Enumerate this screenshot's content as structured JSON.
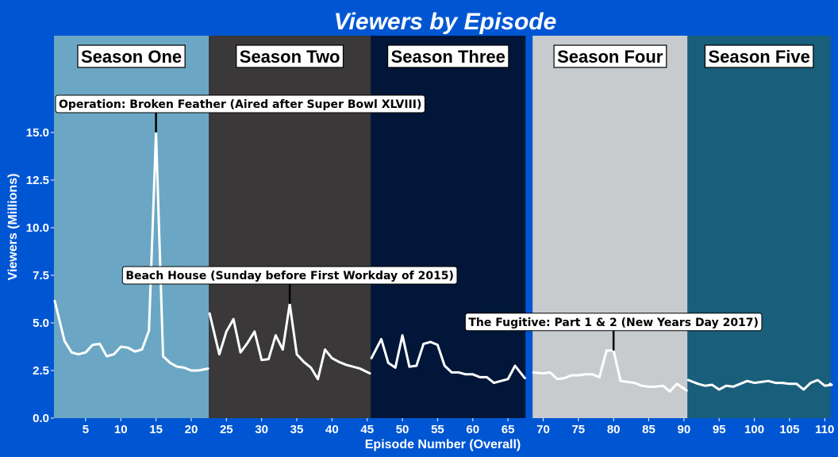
{
  "chart_data": {
    "type": "line",
    "title": "Viewers by Episode",
    "xlabel": "Episode Number (Overall)",
    "ylabel": "Viewers (Millions)",
    "xlim": [
      0.5,
      112
    ],
    "ylim": [
      0,
      18.5
    ],
    "x_ticks": [
      5,
      10,
      15,
      20,
      25,
      30,
      35,
      40,
      45,
      50,
      55,
      60,
      65,
      70,
      75,
      80,
      85,
      90,
      95,
      100,
      105,
      110
    ],
    "y_ticks": [
      "0.0",
      "2.5",
      "5.0",
      "7.5",
      "10.0",
      "12.5",
      "15.0"
    ],
    "grid": false,
    "legend": "none",
    "background_color": "#0056D2",
    "line_color": "#FFFFFF",
    "seasons": [
      {
        "name": "Season One",
        "episodes": [
          1,
          22
        ],
        "color": "#6BA7C4",
        "values": [
          6.15,
          4.05,
          3.45,
          3.35,
          3.45,
          3.85,
          3.9,
          3.25,
          3.35,
          3.75,
          3.7,
          3.5,
          3.6,
          4.6,
          15.0,
          3.25,
          2.9,
          2.7,
          2.65,
          2.5,
          2.5,
          2.6
        ]
      },
      {
        "name": "Season Two",
        "episodes": [
          23,
          45
        ],
        "color": "#3A3838",
        "values": [
          5.5,
          3.35,
          4.55,
          5.2,
          3.45,
          3.95,
          4.55,
          3.05,
          3.1,
          4.35,
          3.6,
          6.0,
          3.35,
          2.95,
          2.65,
          2.05,
          3.6,
          3.15,
          2.95,
          2.8,
          2.7,
          2.6,
          2.35
        ]
      },
      {
        "name": "Season Three",
        "episodes": [
          46,
          67
        ],
        "color": "#011638",
        "values": [
          3.15,
          4.15,
          2.9,
          2.65,
          4.35,
          2.7,
          2.75,
          3.9,
          4.0,
          3.85,
          2.75,
          2.4,
          2.4,
          2.3,
          2.3,
          2.15,
          2.15,
          1.85,
          1.95,
          2.05,
          2.75,
          2.1
        ]
      },
      {
        "name": "Season Four",
        "episodes": [
          69,
          90
        ],
        "color": "#C8CBCE",
        "values": [
          2.4,
          2.35,
          2.4,
          2.05,
          2.1,
          2.25,
          2.25,
          2.3,
          2.3,
          2.15,
          3.55,
          3.55,
          1.95,
          1.9,
          1.85,
          1.7,
          1.65,
          1.65,
          1.7,
          1.4,
          1.8,
          1.45
        ]
      },
      {
        "name": "Season Five",
        "episodes": [
          91,
          112
        ],
        "color": "#195E7A",
        "values": [
          2.0,
          1.8,
          1.7,
          1.75,
          1.5,
          1.7,
          1.65,
          1.8,
          1.95,
          1.85,
          1.9,
          1.95,
          1.85,
          1.85,
          1.8,
          1.8,
          1.5,
          1.85,
          2.0,
          1.7,
          1.75,
          1.8
        ]
      }
    ],
    "annotations": [
      {
        "text": "Operation: Broken Feather (Aired after Super Bowl XLVIII)",
        "x": 15,
        "y": 15.0
      },
      {
        "text": "Beach House (Sunday before First Workday of 2015)",
        "x": 34,
        "y": 6.0
      },
      {
        "text": "The Fugitive: Part 1 & 2 (New Years Day 2017)",
        "x": 80,
        "y": 3.55
      }
    ]
  }
}
